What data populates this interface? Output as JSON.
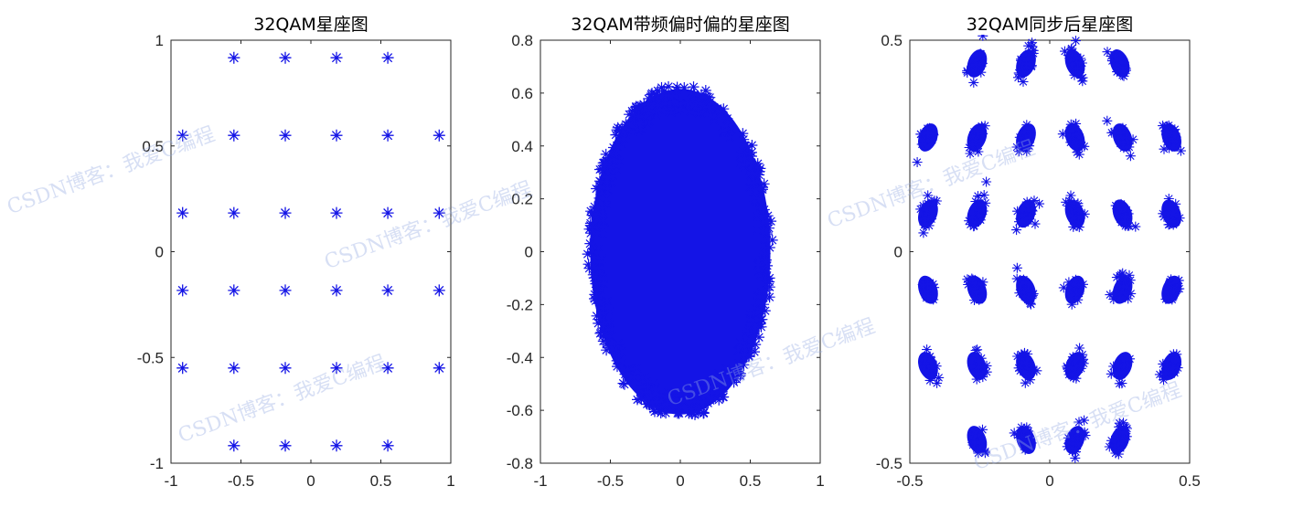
{
  "colors": {
    "marker": "#1414e6",
    "axis": "#262626",
    "background": "#ffffff"
  },
  "watermark": {
    "text": "CSDN博客：我爱C编程"
  },
  "chart_data": [
    {
      "type": "scatter",
      "marker": "asterisk",
      "title": "32QAM星座图",
      "xlim": [
        -1,
        1
      ],
      "ylim": [
        -1,
        1
      ],
      "xticks": [
        -1,
        -0.5,
        0,
        0.5,
        1
      ],
      "yticks": [
        -1,
        -0.5,
        0,
        0.5,
        1
      ],
      "xtick_labels": [
        "-1",
        "-0.5",
        "0",
        "0.5",
        "1"
      ],
      "ytick_labels": [
        "-1",
        "-0.5",
        "0",
        "0.5",
        "1"
      ],
      "grid": false,
      "points": [
        [
          -0.55,
          0.917
        ],
        [
          -0.183,
          0.917
        ],
        [
          0.183,
          0.917
        ],
        [
          0.55,
          0.917
        ],
        [
          -0.917,
          0.55
        ],
        [
          -0.55,
          0.55
        ],
        [
          -0.183,
          0.55
        ],
        [
          0.183,
          0.55
        ],
        [
          0.55,
          0.55
        ],
        [
          0.917,
          0.55
        ],
        [
          -0.917,
          0.183
        ],
        [
          -0.55,
          0.183
        ],
        [
          -0.183,
          0.183
        ],
        [
          0.183,
          0.183
        ],
        [
          0.55,
          0.183
        ],
        [
          0.917,
          0.183
        ],
        [
          -0.917,
          -0.183
        ],
        [
          -0.55,
          -0.183
        ],
        [
          -0.183,
          -0.183
        ],
        [
          0.183,
          -0.183
        ],
        [
          0.55,
          -0.183
        ],
        [
          0.917,
          -0.183
        ],
        [
          -0.917,
          -0.55
        ],
        [
          -0.55,
          -0.55
        ],
        [
          -0.183,
          -0.55
        ],
        [
          0.183,
          -0.55
        ],
        [
          0.55,
          -0.55
        ],
        [
          0.917,
          -0.55
        ],
        [
          -0.55,
          -0.917
        ],
        [
          -0.183,
          -0.917
        ],
        [
          0.183,
          -0.917
        ],
        [
          0.55,
          -0.917
        ]
      ]
    },
    {
      "type": "scatter",
      "marker": "asterisk",
      "title": "32QAM带频偏时偏的星座图",
      "xlim": [
        -1,
        1
      ],
      "ylim": [
        -0.8,
        0.8
      ],
      "xticks": [
        -1,
        -0.5,
        0,
        0.5,
        1
      ],
      "yticks": [
        -0.8,
        -0.6,
        -0.4,
        -0.2,
        0,
        0.2,
        0.4,
        0.6,
        0.8
      ],
      "xtick_labels": [
        "-1",
        "-0.5",
        "0",
        "0.5",
        "1"
      ],
      "ytick_labels": [
        "-0.8",
        "-0.6",
        "-0.4",
        "-0.2",
        "0",
        "0.2",
        "0.4",
        "0.6",
        "0.8"
      ],
      "grid": false,
      "cloud": {
        "center": [
          0,
          0
        ],
        "rx": 0.7,
        "ry": 0.7
      }
    },
    {
      "type": "scatter",
      "marker": "asterisk",
      "title": "32QAM同步后星座图",
      "xlim": [
        -0.5,
        0.5
      ],
      "ylim": [
        -0.5,
        0.5
      ],
      "xticks": [
        -0.5,
        0,
        0.5
      ],
      "yticks": [
        -0.5,
        0,
        0.5
      ],
      "xtick_labels": [
        "-0.5",
        "0",
        "0.5"
      ],
      "ytick_labels": [
        "-0.5",
        "0",
        "0.5"
      ],
      "grid": false,
      "clusters": [
        [
          -0.26,
          0.445
        ],
        [
          -0.085,
          0.445
        ],
        [
          0.09,
          0.445
        ],
        [
          0.25,
          0.445
        ],
        [
          -0.435,
          0.27
        ],
        [
          -0.26,
          0.27
        ],
        [
          -0.085,
          0.27
        ],
        [
          0.09,
          0.27
        ],
        [
          0.26,
          0.27
        ],
        [
          0.435,
          0.27
        ],
        [
          -0.435,
          0.09
        ],
        [
          -0.26,
          0.09
        ],
        [
          -0.085,
          0.09
        ],
        [
          0.09,
          0.09
        ],
        [
          0.26,
          0.09
        ],
        [
          0.435,
          0.09
        ],
        [
          -0.435,
          -0.09
        ],
        [
          -0.26,
          -0.09
        ],
        [
          -0.085,
          -0.09
        ],
        [
          0.09,
          -0.09
        ],
        [
          0.26,
          -0.09
        ],
        [
          0.435,
          -0.09
        ],
        [
          -0.435,
          -0.27
        ],
        [
          -0.26,
          -0.27
        ],
        [
          -0.085,
          -0.27
        ],
        [
          0.09,
          -0.27
        ],
        [
          0.26,
          -0.27
        ],
        [
          0.435,
          -0.27
        ],
        [
          -0.26,
          -0.445
        ],
        [
          -0.085,
          -0.445
        ],
        [
          0.09,
          -0.445
        ],
        [
          0.25,
          -0.445
        ]
      ]
    }
  ]
}
